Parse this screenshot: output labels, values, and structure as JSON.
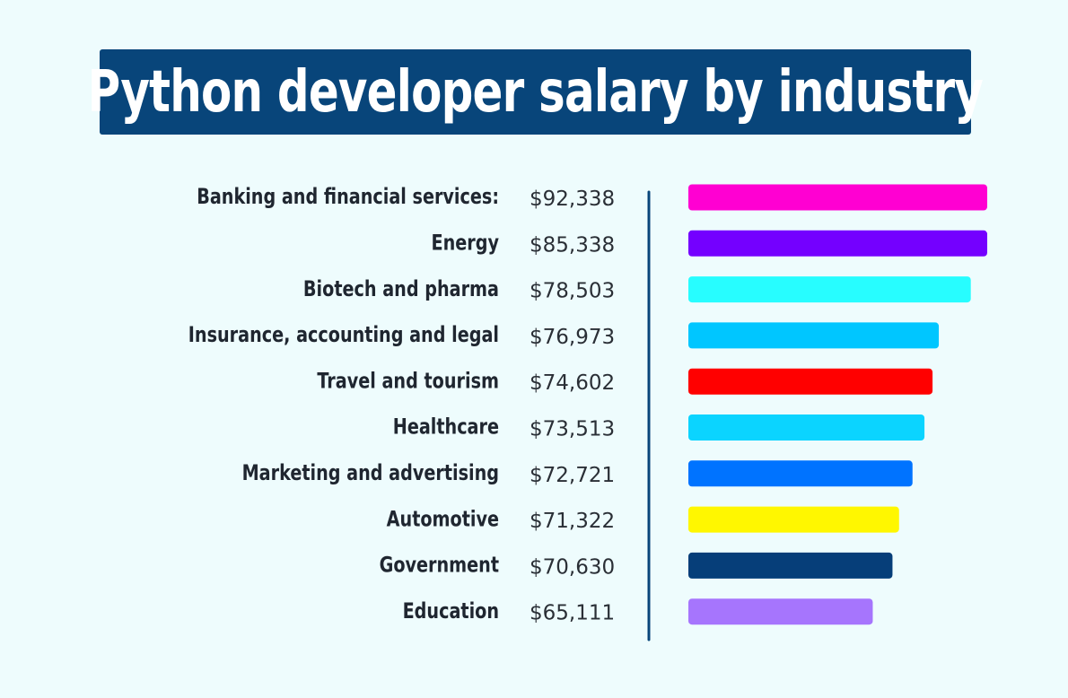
{
  "title": "Python developer salary by industry",
  "colors": {
    "background": "#eefcfd",
    "title_box": "#08457a",
    "axis_line": "#08457a"
  },
  "chart_data": {
    "type": "bar",
    "orientation": "horizontal",
    "categories": [
      "Banking and financial services:",
      "Energy",
      "Biotech and pharma",
      "Insurance, accounting and legal",
      "Travel and tourism",
      "Healthcare",
      "Marketing and advertising",
      "Automotive",
      "Government",
      "Education"
    ],
    "value_labels": [
      "$92,338",
      "$85,338",
      "$78,503",
      "$76,973",
      "$74,602",
      "$73,513",
      "$72,721",
      "$71,322",
      "$70,630",
      "$65,111"
    ],
    "values": [
      92338,
      85338,
      78503,
      76973,
      74602,
      73513,
      72721,
      71322,
      70630,
      65111
    ],
    "bar_fill": [
      1.0,
      1.0,
      0.945,
      0.838,
      0.817,
      0.79,
      0.75,
      0.705,
      0.683,
      0.617
    ],
    "bar_colors": [
      "#ff00d2",
      "#7400ff",
      "#27fdff",
      "#00c6ff",
      "#ff0000",
      "#0bd4ff",
      "#0073ff",
      "#fff700",
      "#063e79",
      "#a675fd"
    ],
    "xlabel": "",
    "ylabel": "",
    "grid": false,
    "legend": "none"
  }
}
